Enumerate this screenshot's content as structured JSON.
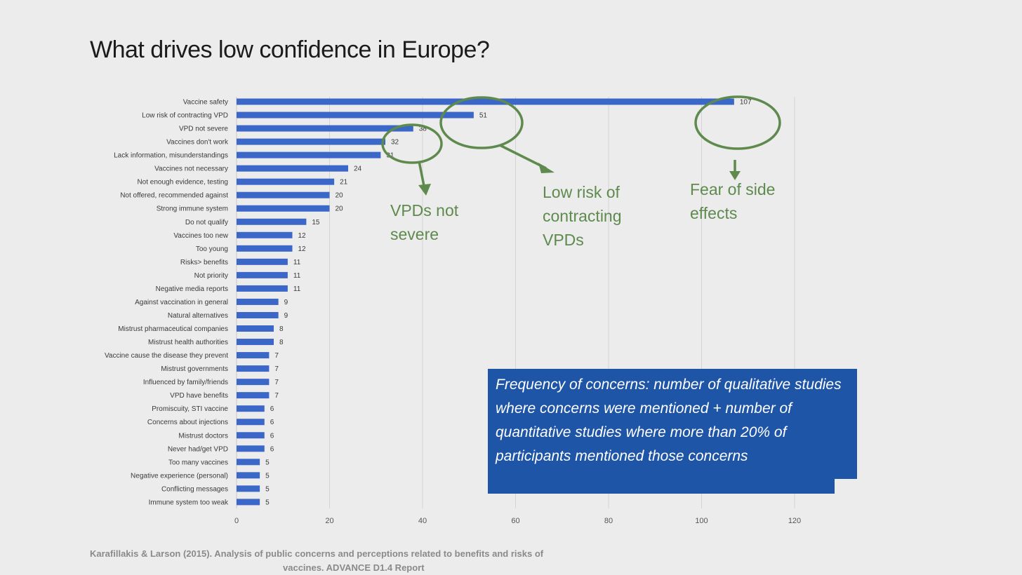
{
  "slide": {
    "title": "What drives low confidence in Europe?",
    "citation_line1": "Karafillakis & Larson (2015). Analysis of public concerns and perceptions related to benefits and risks of",
    "citation_line2": "vaccines. ADVANCE D1.4 Report"
  },
  "annotations": [
    {
      "text": "VPDs not\nsevere"
    },
    {
      "text": "Low risk of\ncontracting\nVPDs"
    },
    {
      "text": "Fear of side\neffects"
    }
  ],
  "note": {
    "text": "Frequency of concerns: number of qualitative studies where concerns were mentioned + number of quantitative studies where more than 20% of participants mentioned those concerns"
  },
  "colors": {
    "bar": "#3a67c8",
    "annotation": "#5e8a4e",
    "note_box": "#1f55a6"
  },
  "chart_data": {
    "type": "bar",
    "orientation": "horizontal",
    "categories": [
      "Vaccine safety",
      "Low risk of contracting VPD",
      "VPD not severe",
      "Vaccines don't work",
      "Lack information, misunderstandings",
      "Vaccines not necessary",
      "Not enough evidence, testing",
      "Not offered, recommended against",
      "Strong immune system",
      "Do not qualify",
      "Vaccines too new",
      "Too young",
      "Risks> benefits",
      "Not priority",
      "Negative media reports",
      "Against vaccination in general",
      "Natural alternatives",
      "Mistrust pharmaceutical companies",
      "Mistrust health authorities",
      "Vaccine cause the disease they prevent",
      "Mistrust governments",
      "Influenced by family/friends",
      "VPD have benefits",
      "Promiscuity, STI vaccine",
      "Concerns about injections",
      "Mistrust doctors",
      "Never had/get VPD",
      "Too many vaccines",
      "Negative experience (personal)",
      "Conflicting messages",
      "Immune system too weak"
    ],
    "values": [
      107,
      51,
      38,
      32,
      31,
      24,
      21,
      20,
      20,
      15,
      12,
      12,
      11,
      11,
      11,
      9,
      9,
      8,
      8,
      7,
      7,
      7,
      7,
      6,
      6,
      6,
      6,
      5,
      5,
      5,
      5
    ],
    "value_labels": [
      "107",
      "51",
      "38",
      "32",
      "31",
      "24",
      "21",
      "20",
      "20",
      "15",
      "12",
      "12",
      "11",
      "11",
      "11",
      "9",
      "9",
      "8",
      "8",
      "7",
      "7",
      "7",
      "7",
      "6",
      "6",
      "6",
      "6",
      "5",
      "5",
      "5",
      "5"
    ],
    "xlim": [
      0,
      120
    ],
    "xticks": [
      0,
      20,
      40,
      60,
      80,
      100,
      120
    ],
    "grid": true,
    "legend": "none",
    "title": "",
    "xlabel": "",
    "ylabel": ""
  }
}
